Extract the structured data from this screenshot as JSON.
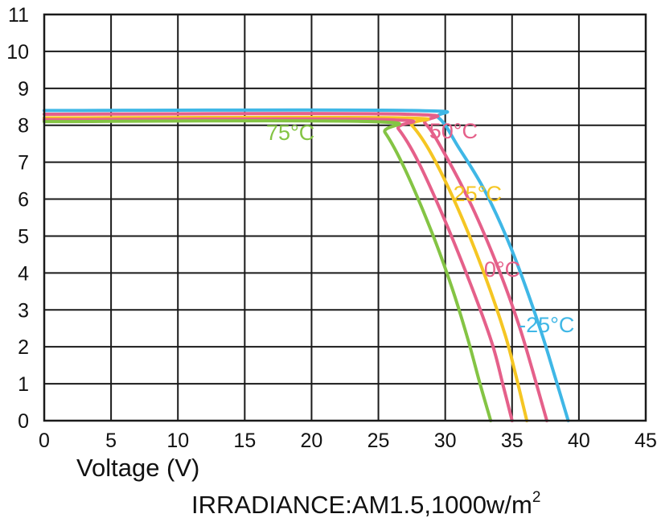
{
  "chart_data": {
    "type": "line",
    "title": "",
    "xlabel": "Voltage (V)",
    "ylabel": "",
    "xlim": [
      0,
      45
    ],
    "ylim": [
      0,
      11
    ],
    "x_ticks": [
      0,
      5,
      10,
      15,
      20,
      25,
      30,
      35,
      40,
      45
    ],
    "y_ticks": [
      0,
      1,
      2,
      3,
      4,
      5,
      6,
      7,
      8,
      9,
      10,
      11
    ],
    "grid": true,
    "legend": "none",
    "note": {
      "text": "IRRADIANCE:AM1.5,1000w/m",
      "superscript": "2"
    },
    "series": [
      {
        "name": "-25°C",
        "color": "#3fb7e6",
        "points": [
          [
            0,
            8.4
          ],
          [
            27.5,
            8.4
          ],
          [
            29.5,
            8.2
          ],
          [
            31,
            7.4
          ],
          [
            33,
            6.2
          ],
          [
            35,
            4.6
          ],
          [
            37,
            2.6
          ],
          [
            38.2,
            1.2
          ],
          [
            39.2,
            0
          ]
        ]
      },
      {
        "name": "0°C",
        "color": "#e5608a",
        "points": [
          [
            0,
            8.3
          ],
          [
            27,
            8.3
          ],
          [
            28.5,
            8.05
          ],
          [
            30,
            7.2
          ],
          [
            32,
            5.8
          ],
          [
            34,
            4.1
          ],
          [
            35.5,
            2.6
          ],
          [
            36.5,
            1.4
          ],
          [
            37.6,
            0
          ]
        ]
      },
      {
        "name": "25°C",
        "color": "#f5c623",
        "points": [
          [
            0,
            8.2
          ],
          [
            26.5,
            8.2
          ],
          [
            27.5,
            8.0
          ],
          [
            29,
            7.2
          ],
          [
            31,
            5.7
          ],
          [
            33,
            3.9
          ],
          [
            34.5,
            2.3
          ],
          [
            35.3,
            1.2
          ],
          [
            36.1,
            0
          ]
        ]
      },
      {
        "name": "50°C",
        "color": "#e5608a",
        "points": [
          [
            0,
            8.15
          ],
          [
            25.5,
            8.15
          ],
          [
            26.5,
            7.9
          ],
          [
            28,
            7.0
          ],
          [
            30,
            5.4
          ],
          [
            32,
            3.6
          ],
          [
            33.5,
            2.1
          ],
          [
            34.3,
            1.0
          ],
          [
            35,
            0
          ]
        ]
      },
      {
        "name": "75°C",
        "color": "#84c444",
        "points": [
          [
            0,
            8.1
          ],
          [
            24.5,
            8.1
          ],
          [
            25.5,
            7.8
          ],
          [
            27,
            6.8
          ],
          [
            29,
            5.1
          ],
          [
            30.5,
            3.6
          ],
          [
            31.7,
            2.2
          ],
          [
            32.6,
            1.0
          ],
          [
            33.4,
            0
          ]
        ]
      }
    ]
  }
}
